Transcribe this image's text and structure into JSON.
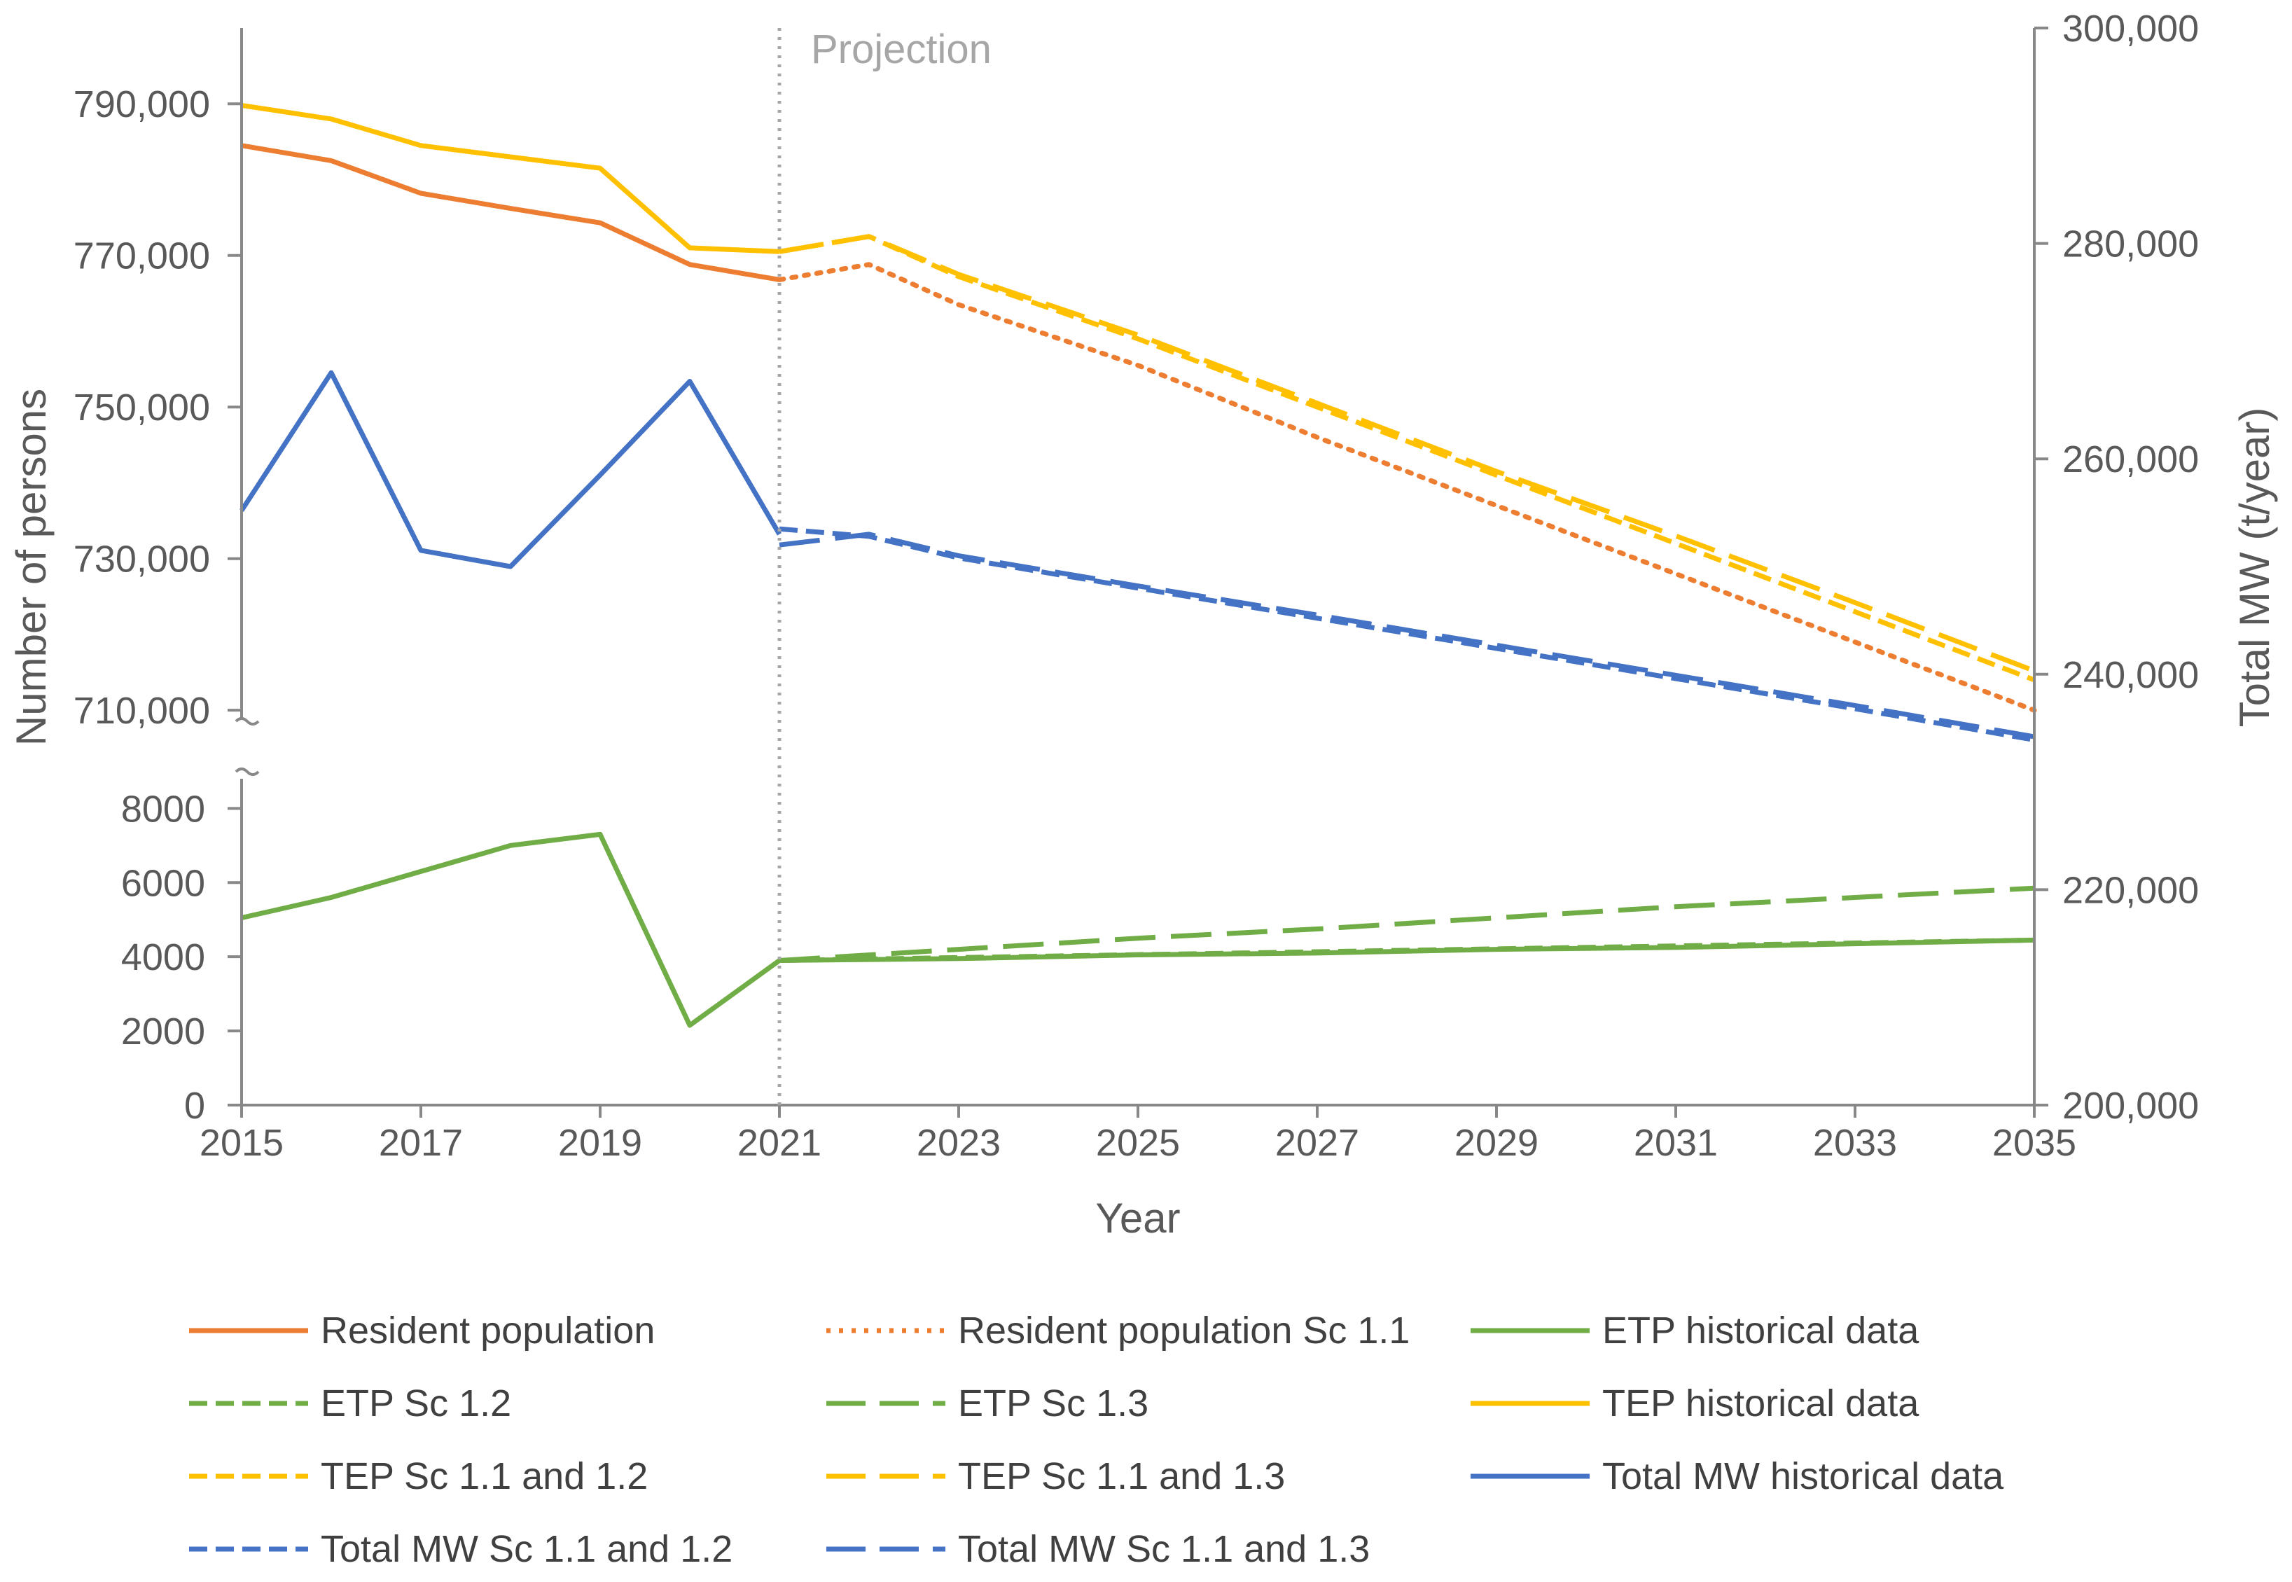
{
  "chart_data": {
    "type": "line",
    "xlabel": "Year",
    "ylabel_left": "Number of persons",
    "ylabel_right": "Total MW (t/year)",
    "annotation": "Projection",
    "projection_start": 2021,
    "x_ticks": [
      "2015",
      "2017",
      "2019",
      "2021",
      "2023",
      "2025",
      "2027",
      "2029",
      "2031",
      "2033",
      "2035"
    ],
    "xlim": [
      2015,
      2035
    ],
    "left_axis_upper": {
      "ticks": [
        "790,000",
        "770,000",
        "750,000",
        "730,000",
        "710,000"
      ],
      "tick_values": [
        790000,
        770000,
        750000,
        730000,
        710000
      ],
      "ylim": [
        709000,
        800000
      ]
    },
    "left_axis_lower": {
      "ticks": [
        "8000",
        "6000",
        "4000",
        "2000",
        "0"
      ],
      "tick_values": [
        8000,
        6000,
        4000,
        2000,
        0
      ],
      "ylim": [
        0,
        8800
      ]
    },
    "right_axis": {
      "ticks": [
        "300,000",
        "280,000",
        "260,000",
        "240,000",
        "220,000",
        "200,000"
      ],
      "tick_values": [
        300000,
        280000,
        260000,
        240000,
        220000,
        200000
      ],
      "ylim": [
        200000,
        300000
      ]
    },
    "series": [
      {
        "name": "Resident population",
        "axis": "left_upper",
        "color": "#ED7D31",
        "style": "solid",
        "x": [
          2015,
          2016,
          2017,
          2018,
          2019,
          2020,
          2021
        ],
        "y": [
          784500,
          782500,
          778200,
          776200,
          774300,
          768800,
          766800
        ]
      },
      {
        "name": "Resident population Sc 1.1",
        "axis": "left_upper",
        "color": "#ED7D31",
        "style": "dotted",
        "x": [
          2021,
          2022,
          2023,
          2025,
          2027,
          2029,
          2031,
          2033,
          2035
        ],
        "y": [
          766800,
          768800,
          763500,
          755500,
          746000,
          737000,
          728000,
          719000,
          710000
        ]
      },
      {
        "name": "ETP historical data",
        "axis": "left_lower",
        "color": "#70AD47",
        "style": "solid",
        "x": [
          2015,
          2016,
          2017,
          2018,
          2019,
          2020,
          2021,
          2023,
          2025,
          2027,
          2029,
          2031,
          2033,
          2035
        ],
        "y": [
          5050,
          5600,
          6300,
          7000,
          7300,
          2150,
          3900,
          3950,
          4050,
          4100,
          4200,
          4250,
          4350,
          4450
        ]
      },
      {
        "name": "ETP Sc 1.2",
        "axis": "left_lower",
        "color": "#70AD47",
        "style": "dash",
        "x": [
          2021,
          2035
        ],
        "y": [
          3900,
          4450
        ]
      },
      {
        "name": "ETP Sc 1.3",
        "axis": "left_lower",
        "color": "#70AD47",
        "style": "longdash",
        "x": [
          2021,
          2023,
          2025,
          2027,
          2029,
          2031,
          2033,
          2035
        ],
        "y": [
          3900,
          4200,
          4500,
          4750,
          5050,
          5350,
          5600,
          5850
        ]
      },
      {
        "name": "TEP historical data",
        "axis": "left_upper",
        "color": "#FFC000",
        "style": "solid",
        "x": [
          2015,
          2016,
          2017,
          2018,
          2019,
          2020,
          2021
        ],
        "y": [
          789800,
          788000,
          784500,
          783000,
          781500,
          771000,
          770500
        ]
      },
      {
        "name": "TEP Sc 1.1 and 1.2",
        "axis": "left_upper",
        "color": "#FFC000",
        "style": "dash",
        "x": [
          2021,
          2022,
          2023,
          2025,
          2027,
          2029,
          2031,
          2033,
          2035
        ],
        "y": [
          770500,
          772500,
          767200,
          759000,
          750000,
          741000,
          732000,
          723000,
          714000
        ]
      },
      {
        "name": "TEP Sc 1.1 and 1.3",
        "axis": "left_upper",
        "color": "#FFC000",
        "style": "longdash",
        "x": [
          2021,
          2022,
          2023,
          2025,
          2027,
          2029,
          2031,
          2033,
          2035
        ],
        "y": [
          770500,
          772500,
          767500,
          759500,
          750500,
          741500,
          733000,
          724200,
          715200
        ]
      },
      {
        "name": "Total MW historical data",
        "axis": "right",
        "color": "#4472C4",
        "style": "solid",
        "x": [
          2015,
          2016,
          2017,
          2018,
          2019,
          2020,
          2021
        ],
        "y": [
          255200,
          268000,
          251500,
          250000,
          258500,
          267200,
          253000
        ]
      },
      {
        "name": "Total MW Sc 1.1 and 1.2",
        "axis": "right",
        "color": "#4472C4",
        "style": "dash",
        "x": [
          2021,
          2022,
          2023,
          2025,
          2027,
          2029,
          2031,
          2033,
          2035
        ],
        "y": [
          253500,
          252800,
          250800,
          248000,
          245200,
          242400,
          239600,
          236800,
          233900
        ]
      },
      {
        "name": "Total MW Sc 1.1 and 1.3",
        "axis": "right",
        "color": "#4472C4",
        "style": "longdash",
        "x": [
          2021,
          2022,
          2023,
          2025,
          2027,
          2029,
          2031,
          2033,
          2035
        ],
        "y": [
          252000,
          253000,
          251000,
          248200,
          245500,
          242700,
          239900,
          237100,
          234200
        ]
      }
    ]
  }
}
